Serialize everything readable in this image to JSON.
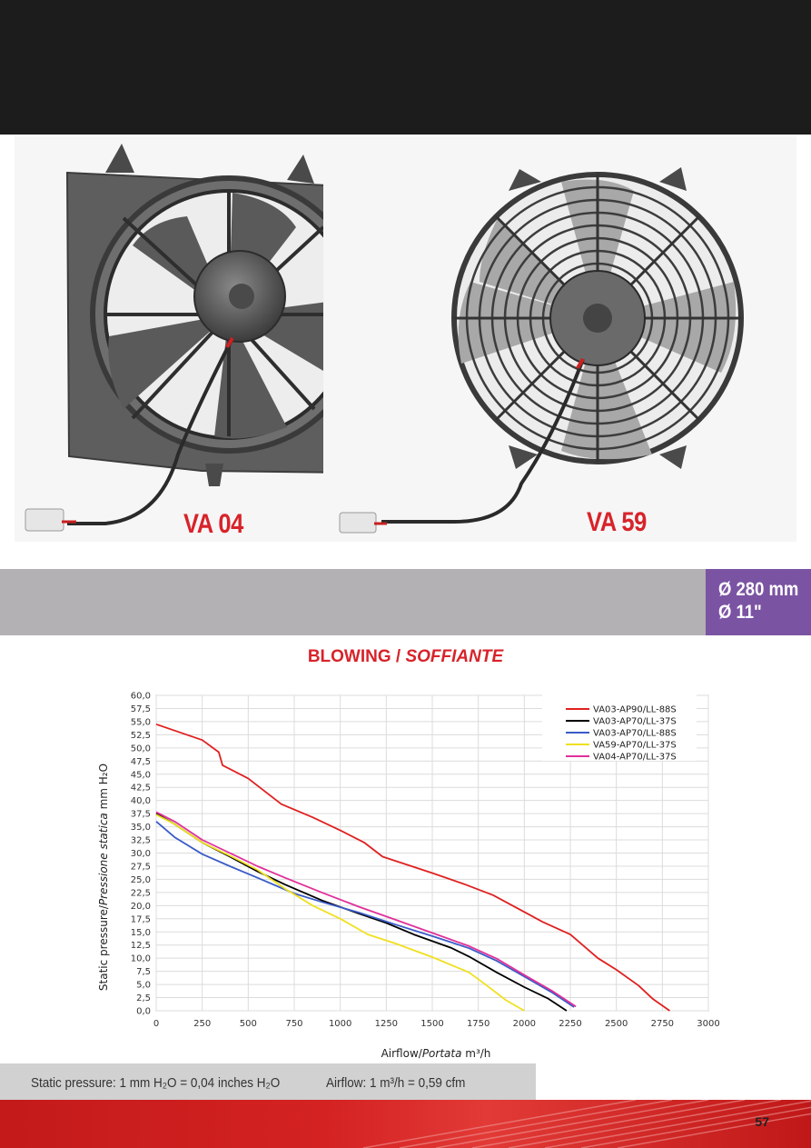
{
  "products": {
    "left_label": "VA 04",
    "right_label": "VA 59"
  },
  "size": {
    "diameter_mm": "Ø 280 mm",
    "diameter_in": "Ø 11\""
  },
  "chart_header": {
    "title_en": "BLOWING / ",
    "title_it": "SOFFIANTE"
  },
  "notes": {
    "static_pressure": "Static pressure: 1 mm H₂O = 0,04 inches H₂O",
    "airflow": "Airflow: 1 m³/h = 0,59 cfm"
  },
  "page_number": "57",
  "colors": {
    "accent_red": "#d8232a",
    "purple": "#7b53a3",
    "grey_band": "#b3b1b3"
  },
  "chart_data": {
    "type": "line",
    "xlabel_en": "Airflow/",
    "xlabel_it": "Portata",
    "xlabel_unit": " m³/h",
    "ylabel_en": "Static pressure/",
    "ylabel_it": "Pressione statica",
    "ylabel_unit": " mm H₂O",
    "xlim": [
      0,
      3000
    ],
    "ylim": [
      0,
      60
    ],
    "x_ticks": [
      0,
      250,
      500,
      750,
      1000,
      1250,
      1500,
      1750,
      2000,
      2250,
      2500,
      2750,
      3000
    ],
    "y_ticks": [
      "0,0",
      "2,5",
      "5,0",
      "7,5",
      "10,0",
      "12,5",
      "15,0",
      "17,5",
      "20,0",
      "22,5",
      "25,0",
      "27,5",
      "30,0",
      "32,5",
      "35,0",
      "37,5",
      "40,0",
      "42,5",
      "45,0",
      "47,5",
      "50,0",
      "52,5",
      "55,0",
      "57,5",
      "60,0"
    ],
    "grid": true,
    "legend_position": "top-right",
    "series": [
      {
        "name": "VA03-AP90/LL-88S",
        "color": "#e02020",
        "x": [
          0,
          250,
          340,
          360,
          500,
          680,
          850,
          1000,
          1130,
          1230,
          1500,
          1680,
          1830,
          2000,
          2100,
          2250,
          2400,
          2500,
          2620,
          2700,
          2790
        ],
        "y": [
          54.5,
          51.5,
          49.2,
          46.7,
          44.2,
          39.3,
          36.8,
          34.3,
          32.0,
          29.3,
          26.2,
          24.0,
          22.0,
          18.8,
          16.9,
          14.5,
          10.0,
          7.8,
          4.8,
          2.2,
          0.0
        ]
      },
      {
        "name": "VA03-AP70/LL-37S",
        "color": "#000000",
        "x": [
          0,
          100,
          250,
          400,
          550,
          700,
          900,
          1100,
          1250,
          1400,
          1600,
          1700,
          1850,
          2000,
          2130,
          2230
        ],
        "y": [
          37.5,
          35.5,
          32.0,
          29.3,
          26.5,
          24.0,
          21.0,
          18.5,
          16.7,
          14.5,
          12.0,
          10.3,
          7.3,
          4.5,
          2.3,
          0.0
        ]
      },
      {
        "name": "VA03-AP70/LL-88S",
        "color": "#3a5bc8",
        "x": [
          0,
          100,
          250,
          400,
          550,
          750,
          900,
          1100,
          1300,
          1500,
          1700,
          1850,
          2000,
          2150,
          2270
        ],
        "y": [
          36.0,
          33.0,
          29.8,
          27.5,
          25.3,
          22.3,
          20.7,
          18.7,
          16.4,
          14.2,
          11.9,
          9.5,
          6.5,
          3.5,
          0.7
        ]
      },
      {
        "name": "VA59-AP70/LL-37S",
        "color": "#f0e020",
        "x": [
          0,
          100,
          250,
          400,
          550,
          700,
          850,
          1000,
          1150,
          1300,
          1500,
          1700,
          1800,
          1900,
          2000
        ],
        "y": [
          37.3,
          35.5,
          32.0,
          29.5,
          26.8,
          23.2,
          20.0,
          17.5,
          14.5,
          12.8,
          10.2,
          7.3,
          4.7,
          2.0,
          0.0
        ]
      },
      {
        "name": "VA04-AP70/LL-37S",
        "color": "#e0309a",
        "x": [
          0,
          100,
          250,
          400,
          550,
          700,
          900,
          1100,
          1300,
          1500,
          1700,
          1850,
          2000,
          2150,
          2280
        ],
        "y": [
          37.8,
          36.0,
          32.5,
          30.0,
          27.5,
          25.3,
          22.5,
          19.8,
          17.3,
          14.8,
          12.3,
          9.9,
          6.8,
          3.8,
          0.8
        ]
      }
    ]
  }
}
